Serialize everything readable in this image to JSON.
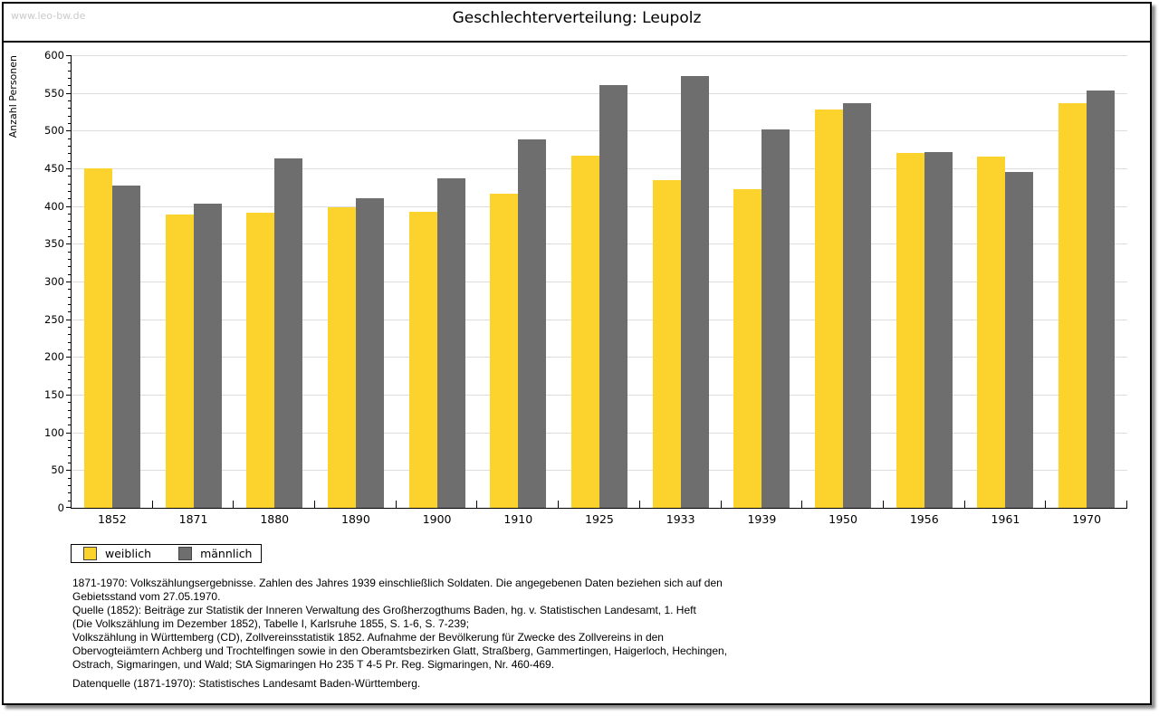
{
  "page": {
    "watermark": "www.leo-bw.de",
    "title": "Geschlechterverteilung: Leupolz"
  },
  "chart_data": {
    "type": "bar",
    "title": "Geschlechterverteilung: Leupolz",
    "xlabel": "",
    "ylabel": "Anzahl Personen",
    "ylim": [
      0,
      600
    ],
    "ytick_step": 50,
    "ytick_minor_step": 10,
    "grid": true,
    "legend_position": "bottom-left",
    "categories": [
      "1852",
      "1871",
      "1880",
      "1890",
      "1900",
      "1910",
      "1925",
      "1933",
      "1939",
      "1950",
      "1956",
      "1961",
      "1970"
    ],
    "series": [
      {
        "name": "weiblich",
        "color": "#fcd32d",
        "values": [
          450,
          389,
          391,
          398,
          392,
          417,
          467,
          434,
          423,
          528,
          470,
          466,
          536
        ]
      },
      {
        "name": "männlich",
        "color": "#6e6e6e",
        "values": [
          427,
          403,
          463,
          411,
          437,
          489,
          560,
          573,
          502,
          537,
          472,
          445,
          553
        ]
      }
    ]
  },
  "footer": {
    "lines": [
      "1871-1970: Volkszählungsergebnisse. Zahlen des Jahres 1939 einschließlich Soldaten. Die angegebenen Daten beziehen sich auf den",
      "Gebietsstand vom 27.05.1970.",
      "Quelle (1852): Beiträge zur Statistik der Inneren Verwaltung des Großherzogthums Baden, hg. v. Statistischen Landesamt, 1. Heft",
      "(Die Volkszählung im Dezember 1852), Tabelle I, Karlsruhe 1855, S. 1-6, S. 7-239;",
      "Volkszählung in Württemberg (CD), Zollvereinsstatistik 1852. Aufnahme der Bevölkerung für Zwecke des Zollvereins in den",
      "Obervogteiämtern Achberg und Trochtelfingen sowie in den Oberamtsbezirken Glatt, Straßberg, Gammertingen, Haigerloch, Hechingen,",
      "Ostrach, Sigmaringen, und Wald; StA Sigmaringen Ho 235 T 4-5 Pr. Reg. Sigmaringen, Nr. 460-469."
    ],
    "datasource": "Datenquelle (1871-1970): Statistisches Landesamt Baden-Württemberg."
  },
  "colors": {
    "female_bar": "#fcd32d",
    "male_bar": "#6e6e6e",
    "gridline": "#dddddd",
    "watermark": "#c9c9c9",
    "axis": "#000000"
  }
}
